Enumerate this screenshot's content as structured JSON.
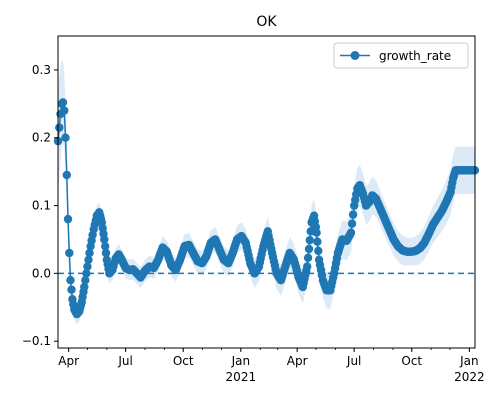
{
  "chart_data": {
    "type": "line",
    "title": "OK",
    "xlabel": "",
    "ylabel": "",
    "x_range": [
      "2020-03-15",
      "2022-01-10"
    ],
    "ylim": [
      -0.11,
      0.35
    ],
    "grid": false,
    "legend": {
      "placement": "top-right",
      "entries": [
        "growth_rate"
      ]
    },
    "x_ticks": [
      {
        "date": "2020-04-01",
        "label": "Apr",
        "sub": ""
      },
      {
        "date": "2020-07-01",
        "label": "Jul",
        "sub": ""
      },
      {
        "date": "2020-10-01",
        "label": "Oct",
        "sub": ""
      },
      {
        "date": "2021-01-01",
        "label": "Jan",
        "sub": "2021"
      },
      {
        "date": "2021-04-01",
        "label": "Apr",
        "sub": ""
      },
      {
        "date": "2021-07-01",
        "label": "Jul",
        "sub": ""
      },
      {
        "date": "2021-10-01",
        "label": "Oct",
        "sub": ""
      },
      {
        "date": "2022-01-01",
        "label": "Jan",
        "sub": "2022"
      }
    ],
    "y_ticks": [
      {
        "value": -0.1,
        "label": "−0.1"
      },
      {
        "value": 0.0,
        "label": "0.0"
      },
      {
        "value": 0.1,
        "label": "0.1"
      },
      {
        "value": 0.2,
        "label": "0.2"
      },
      {
        "value": 0.3,
        "label": "0.3"
      }
    ],
    "reference_line": {
      "y": 0.0,
      "style": "dashed"
    },
    "series": [
      {
        "name": "growth_rate",
        "color": "#1f77b4",
        "band_color": "#dce9f6",
        "points": [
          [
            "2020-03-15",
            0.195
          ],
          [
            "2020-03-17",
            0.215
          ],
          [
            "2020-03-19",
            0.235
          ],
          [
            "2020-03-21",
            0.25
          ],
          [
            "2020-03-23",
            0.252
          ],
          [
            "2020-03-25",
            0.24
          ],
          [
            "2020-03-27",
            0.2
          ],
          [
            "2020-03-29",
            0.145
          ],
          [
            "2020-03-31",
            0.08
          ],
          [
            "2020-04-02",
            0.03
          ],
          [
            "2020-04-04",
            -0.01
          ],
          [
            "2020-04-07",
            -0.038
          ],
          [
            "2020-04-10",
            -0.053
          ],
          [
            "2020-04-14",
            -0.06
          ],
          [
            "2020-04-18",
            -0.056
          ],
          [
            "2020-04-22",
            -0.042
          ],
          [
            "2020-04-26",
            -0.02
          ],
          [
            "2020-05-01",
            0.01
          ],
          [
            "2020-05-06",
            0.04
          ],
          [
            "2020-05-11",
            0.065
          ],
          [
            "2020-05-16",
            0.085
          ],
          [
            "2020-05-20",
            0.09
          ],
          [
            "2020-05-24",
            0.075
          ],
          [
            "2020-05-28",
            0.05
          ],
          [
            "2020-06-01",
            0.02
          ],
          [
            "2020-06-05",
            0.0
          ],
          [
            "2020-06-10",
            0.005
          ],
          [
            "2020-06-15",
            0.022
          ],
          [
            "2020-06-20",
            0.028
          ],
          [
            "2020-06-25",
            0.02
          ],
          [
            "2020-07-01",
            0.008
          ],
          [
            "2020-07-07",
            0.005
          ],
          [
            "2020-07-13",
            0.006
          ],
          [
            "2020-07-19",
            0.0
          ],
          [
            "2020-07-25",
            -0.006
          ],
          [
            "2020-08-01",
            0.004
          ],
          [
            "2020-08-08",
            0.01
          ],
          [
            "2020-08-15",
            0.008
          ],
          [
            "2020-08-22",
            0.02
          ],
          [
            "2020-08-29",
            0.038
          ],
          [
            "2020-09-05",
            0.032
          ],
          [
            "2020-09-12",
            0.012
          ],
          [
            "2020-09-19",
            0.005
          ],
          [
            "2020-09-26",
            0.02
          ],
          [
            "2020-10-03",
            0.04
          ],
          [
            "2020-10-10",
            0.042
          ],
          [
            "2020-10-17",
            0.03
          ],
          [
            "2020-10-24",
            0.018
          ],
          [
            "2020-10-31",
            0.015
          ],
          [
            "2020-11-07",
            0.025
          ],
          [
            "2020-11-14",
            0.045
          ],
          [
            "2020-11-21",
            0.05
          ],
          [
            "2020-11-28",
            0.035
          ],
          [
            "2020-12-05",
            0.02
          ],
          [
            "2020-12-12",
            0.015
          ],
          [
            "2020-12-19",
            0.03
          ],
          [
            "2020-12-26",
            0.05
          ],
          [
            "2021-01-02",
            0.055
          ],
          [
            "2021-01-09",
            0.045
          ],
          [
            "2021-01-16",
            0.015
          ],
          [
            "2021-01-23",
            0.0
          ],
          [
            "2021-01-30",
            0.01
          ],
          [
            "2021-02-06",
            0.04
          ],
          [
            "2021-02-13",
            0.062
          ],
          [
            "2021-02-20",
            0.03
          ],
          [
            "2021-02-27",
            0.0
          ],
          [
            "2021-03-06",
            -0.01
          ],
          [
            "2021-03-13",
            0.01
          ],
          [
            "2021-03-20",
            0.03
          ],
          [
            "2021-03-27",
            0.02
          ],
          [
            "2021-04-03",
            -0.005
          ],
          [
            "2021-04-10",
            -0.02
          ],
          [
            "2021-04-17",
            0.01
          ],
          [
            "2021-04-24",
            0.075
          ],
          [
            "2021-04-28",
            0.085
          ],
          [
            "2021-05-02",
            0.06
          ],
          [
            "2021-05-06",
            0.02
          ],
          [
            "2021-05-12",
            -0.01
          ],
          [
            "2021-05-18",
            -0.025
          ],
          [
            "2021-05-24",
            -0.025
          ],
          [
            "2021-05-30",
            0.0
          ],
          [
            "2021-06-05",
            0.03
          ],
          [
            "2021-06-12",
            0.05
          ],
          [
            "2021-06-19",
            0.048
          ],
          [
            "2021-06-26",
            0.06
          ],
          [
            "2021-07-01",
            0.1
          ],
          [
            "2021-07-06",
            0.125
          ],
          [
            "2021-07-10",
            0.13
          ],
          [
            "2021-07-15",
            0.118
          ],
          [
            "2021-07-20",
            0.1
          ],
          [
            "2021-07-25",
            0.105
          ],
          [
            "2021-07-30",
            0.115
          ],
          [
            "2021-08-05",
            0.11
          ],
          [
            "2021-08-12",
            0.095
          ],
          [
            "2021-08-19",
            0.08
          ],
          [
            "2021-08-26",
            0.065
          ],
          [
            "2021-09-02",
            0.05
          ],
          [
            "2021-09-09",
            0.04
          ],
          [
            "2021-09-16",
            0.034
          ],
          [
            "2021-09-23",
            0.032
          ],
          [
            "2021-09-30",
            0.032
          ],
          [
            "2021-10-07",
            0.033
          ],
          [
            "2021-10-14",
            0.037
          ],
          [
            "2021-10-21",
            0.045
          ],
          [
            "2021-10-28",
            0.058
          ],
          [
            "2021-11-04",
            0.072
          ],
          [
            "2021-11-11",
            0.082
          ],
          [
            "2021-11-18",
            0.092
          ],
          [
            "2021-11-25",
            0.105
          ],
          [
            "2021-12-02",
            0.12
          ],
          [
            "2021-12-06",
            0.14
          ],
          [
            "2021-12-10",
            0.152
          ],
          [
            "2021-12-20",
            0.152
          ],
          [
            "2022-01-01",
            0.152
          ],
          [
            "2022-01-10",
            0.152
          ]
        ],
        "band_halfwidth": [
          [
            "2020-03-15",
            0.08
          ],
          [
            "2020-04-10",
            0.015
          ],
          [
            "2020-07-01",
            0.015
          ],
          [
            "2021-01-01",
            0.02
          ],
          [
            "2021-04-20",
            0.025
          ],
          [
            "2021-07-10",
            0.03
          ],
          [
            "2021-10-01",
            0.02
          ],
          [
            "2021-12-10",
            0.035
          ],
          [
            "2022-01-10",
            0.035
          ]
        ]
      }
    ]
  }
}
